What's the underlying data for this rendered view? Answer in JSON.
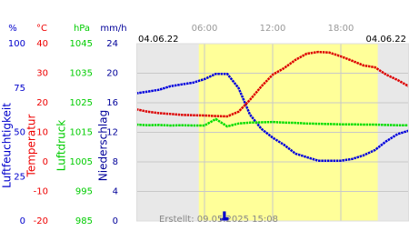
{
  "chart_data": {
    "type": "line",
    "date_left": "04.06.22",
    "date_right": "04.06.22",
    "created": "Erstellt: 09.05.2025 15:08",
    "xlim": [
      0,
      24
    ],
    "xticks": [
      {
        "value": 6,
        "label": "06:00"
      },
      {
        "value": 12,
        "label": "12:00"
      },
      {
        "value": 18,
        "label": "18:00"
      }
    ],
    "daylight": [
      5.5,
      21.25
    ],
    "grid": true,
    "axes": [
      {
        "unit": "%",
        "title": "Luftfeuchtigkeit",
        "color": "#0000cc",
        "lim": [
          0,
          100
        ],
        "ticks": [
          0,
          25,
          50,
          75,
          100
        ]
      },
      {
        "unit": "°C",
        "title": "Temperatur",
        "color": "#ee0000",
        "lim": [
          -20,
          40
        ],
        "ticks": [
          -20,
          -10,
          0,
          10,
          20,
          30,
          40
        ]
      },
      {
        "unit": "hPa",
        "title": "Luftdruck",
        "color": "#00cc00",
        "lim": [
          985,
          1045
        ],
        "ticks": [
          985,
          995,
          1005,
          1015,
          1025,
          1035,
          1045
        ]
      },
      {
        "unit": "mm/h",
        "title": "Niederschlag",
        "color": "#000099",
        "lim": [
          0,
          24
        ],
        "ticks": [
          0,
          4,
          8,
          12,
          16,
          20,
          24
        ]
      }
    ],
    "x": [
      0,
      1,
      2,
      3,
      4,
      5,
      6,
      7,
      8,
      9,
      10,
      11,
      12,
      13,
      14,
      15,
      16,
      17,
      18,
      19,
      20,
      21,
      22,
      23,
      24
    ],
    "series": [
      {
        "axis": 0,
        "color": "#0000dd",
        "values": [
          72,
          73,
          74,
          76,
          77,
          78,
          80,
          83,
          83,
          75,
          60,
          52,
          47,
          43,
          38,
          36,
          34,
          34,
          34,
          35,
          37,
          40,
          45,
          49,
          51
        ]
      },
      {
        "axis": 1,
        "color": "#dd0000",
        "values": [
          17.8,
          17.0,
          16.5,
          16.2,
          15.9,
          15.8,
          15.7,
          15.5,
          15.4,
          17,
          21,
          25.5,
          29.5,
          31.7,
          34.5,
          36.6,
          37.2,
          37,
          35.7,
          34.2,
          32.6,
          32,
          29.5,
          27.7,
          25.5
        ]
      },
      {
        "axis": 2,
        "color": "#00dd00",
        "values": [
          1017.6,
          1017.4,
          1017.5,
          1017.3,
          1017.4,
          1017.3,
          1017.3,
          1019.5,
          1017.0,
          1018.0,
          1018.3,
          1018.4,
          1018.5,
          1018.3,
          1018.2,
          1018.0,
          1017.9,
          1017.8,
          1017.7,
          1017.7,
          1017.6,
          1017.6,
          1017.5,
          1017.4,
          1017.4
        ]
      },
      {
        "axis": 3,
        "type": "bar",
        "color": "#0000cc",
        "x": [
          7.5,
          7.75,
          8.0
        ],
        "values": [
          0.4,
          1.3,
          0.5
        ]
      }
    ]
  }
}
